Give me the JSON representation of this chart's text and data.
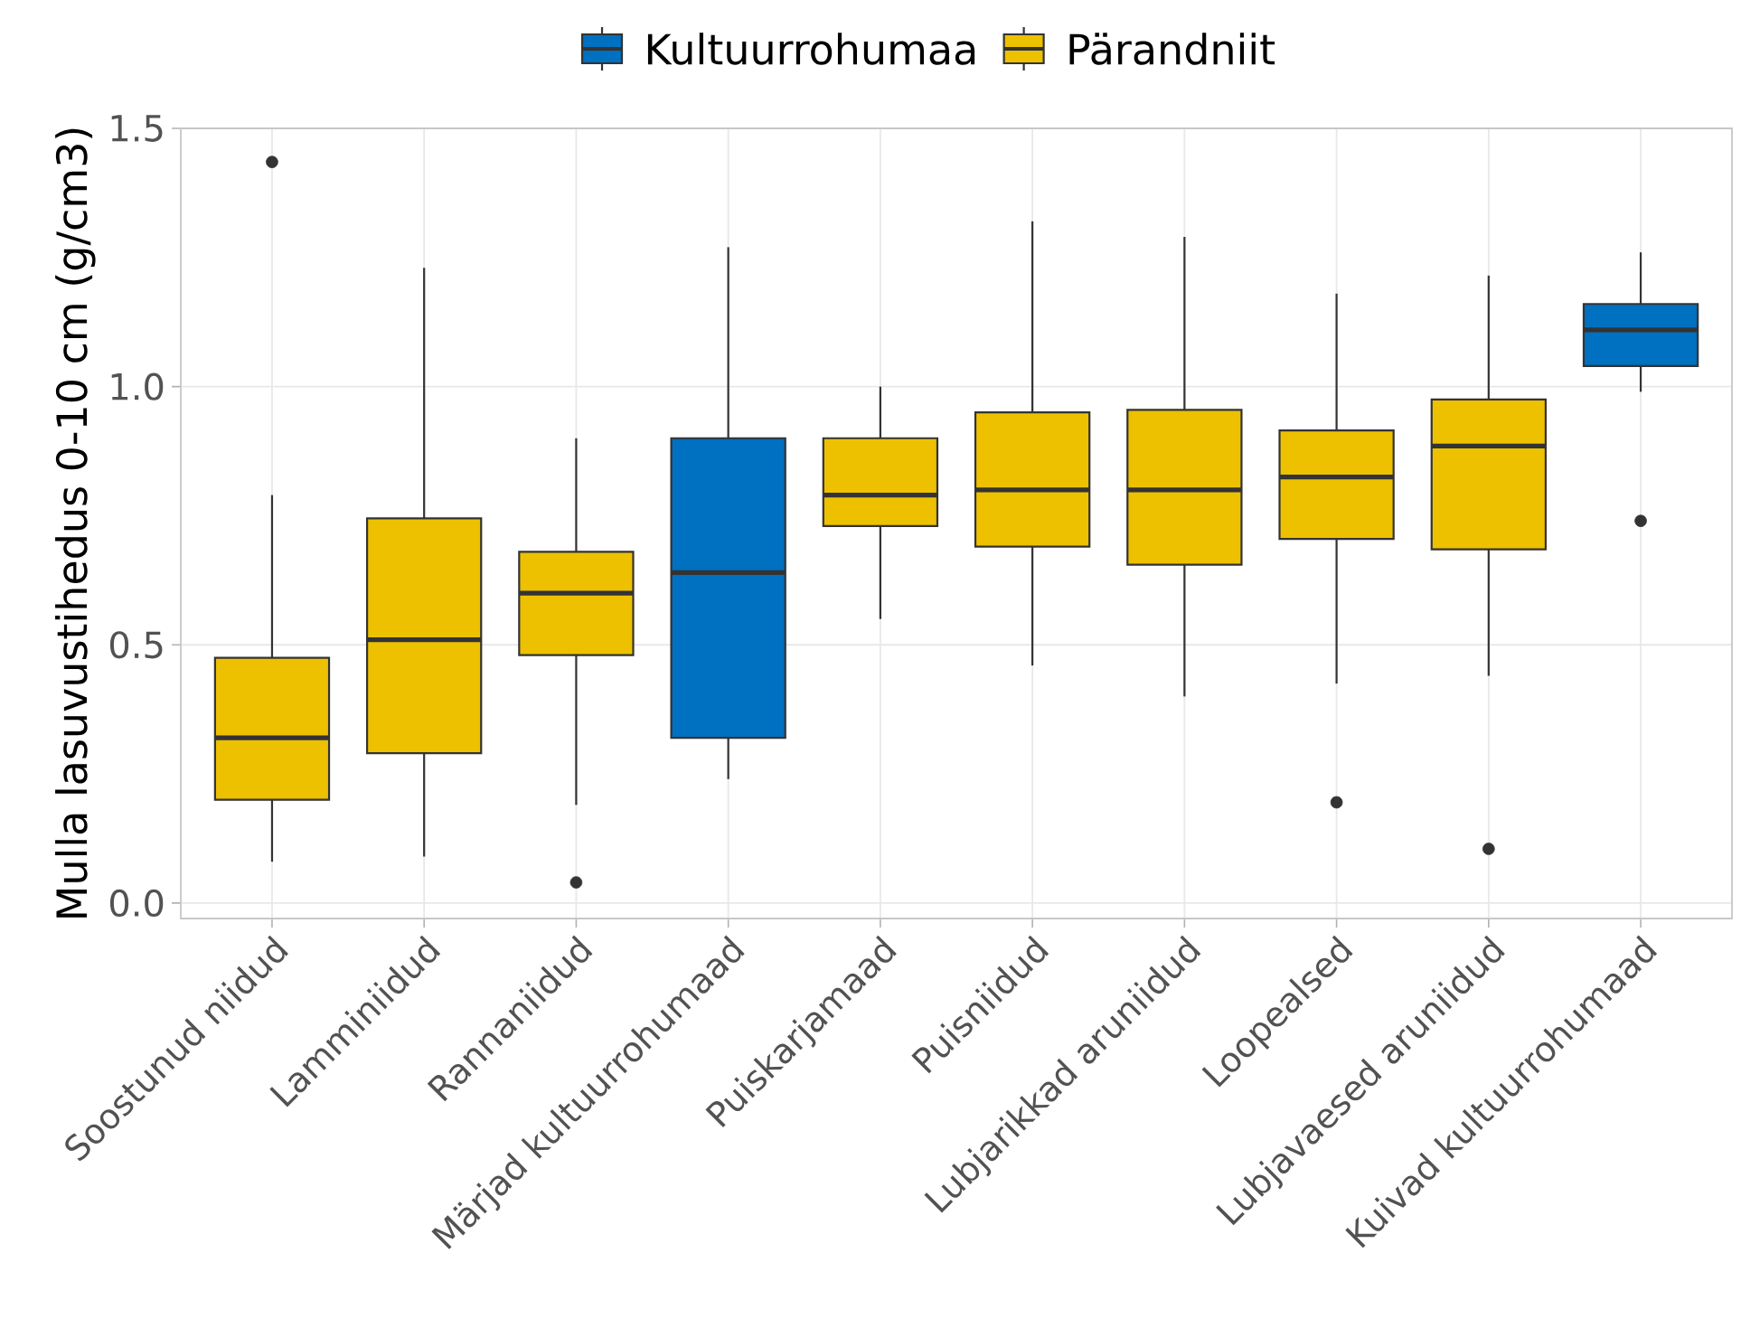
{
  "chart_data": {
    "type": "box",
    "ylabel": "Mulla lasuvustihedus 0-10 cm (g/cm3)",
    "categories": [
      "Soostunud niidud",
      "Lamminiidud",
      "Rannaniidud",
      "Märjad kultuurrohumaad",
      "Puiskarjamaad",
      "Puisniidud",
      "Lubjarikkad aruniidud",
      "Loopealsed",
      "Lubjavaesed aruniidud",
      "Kuivad kultuurrohumaad"
    ],
    "series": [
      {
        "name": "Kultuurrohumaa",
        "color": "#0070c0",
        "boxes": [
          null,
          null,
          null,
          {
            "low": 0.24,
            "q1": 0.32,
            "median": 0.64,
            "q3": 0.9,
            "high": 1.27
          },
          null,
          null,
          null,
          null,
          null,
          {
            "low": 0.99,
            "q1": 1.04,
            "median": 1.11,
            "q3": 1.16,
            "high": 1.26,
            "outliers": [
              0.74
            ]
          }
        ]
      },
      {
        "name": "Pärandniit",
        "color": "#edc100",
        "boxes": [
          {
            "low": 0.08,
            "q1": 0.2,
            "median": 0.32,
            "q3": 0.475,
            "high": 0.79,
            "outliers": [
              1.435
            ]
          },
          {
            "low": 0.09,
            "q1": 0.29,
            "median": 0.51,
            "q3": 0.745,
            "high": 1.23
          },
          {
            "low": 0.19,
            "q1": 0.48,
            "median": 0.6,
            "q3": 0.68,
            "high": 0.9,
            "outliers": [
              0.04
            ]
          },
          null,
          {
            "low": 0.55,
            "q1": 0.73,
            "median": 0.79,
            "q3": 0.9,
            "high": 1.0
          },
          {
            "low": 0.46,
            "q1": 0.69,
            "median": 0.8,
            "q3": 0.95,
            "high": 1.32
          },
          {
            "low": 0.4,
            "q1": 0.655,
            "median": 0.8,
            "q3": 0.955,
            "high": 1.29
          },
          {
            "low": 0.425,
            "q1": 0.705,
            "median": 0.825,
            "q3": 0.915,
            "high": 1.18,
            "outliers": [
              0.195
            ]
          },
          {
            "low": 0.44,
            "q1": 0.685,
            "median": 0.885,
            "q3": 0.975,
            "high": 1.215,
            "outliers": [
              0.105
            ]
          },
          null
        ]
      }
    ],
    "ylim": [
      -0.03,
      1.5
    ],
    "yticks": [
      {
        "value": 0,
        "label": "0.0"
      },
      0.5,
      {
        "value": 1,
        "label": "1.0"
      },
      1.5
    ],
    "grid": true,
    "legend": "top"
  }
}
